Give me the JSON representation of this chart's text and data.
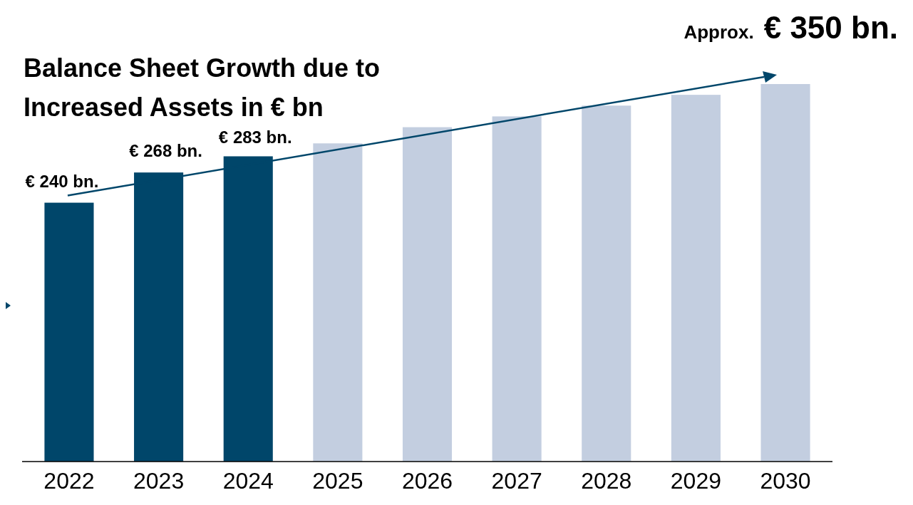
{
  "chart_data": {
    "type": "bar",
    "title": "Balance Sheet Growth due to Increased Assets in € bn",
    "categories": [
      "2022",
      "2023",
      "2024",
      "2025",
      "2026",
      "2027",
      "2028",
      "2029",
      "2030"
    ],
    "values": [
      240,
      268,
      283,
      295,
      310,
      320,
      330,
      340,
      350
    ],
    "colors": [
      "#00466a",
      "#00466a",
      "#00466a",
      "#c3cee0",
      "#c3cee0",
      "#c3cee0",
      "#c3cee0",
      "#c3cee0",
      "#c3cee0"
    ],
    "value_labels": [
      "€ 240 bn.",
      "€ 268 bn.",
      "€ 283 bn.",
      null,
      null,
      null,
      null,
      null,
      null
    ],
    "annotations": [
      "Approx.",
      "€ 350 bn."
    ]
  }
}
